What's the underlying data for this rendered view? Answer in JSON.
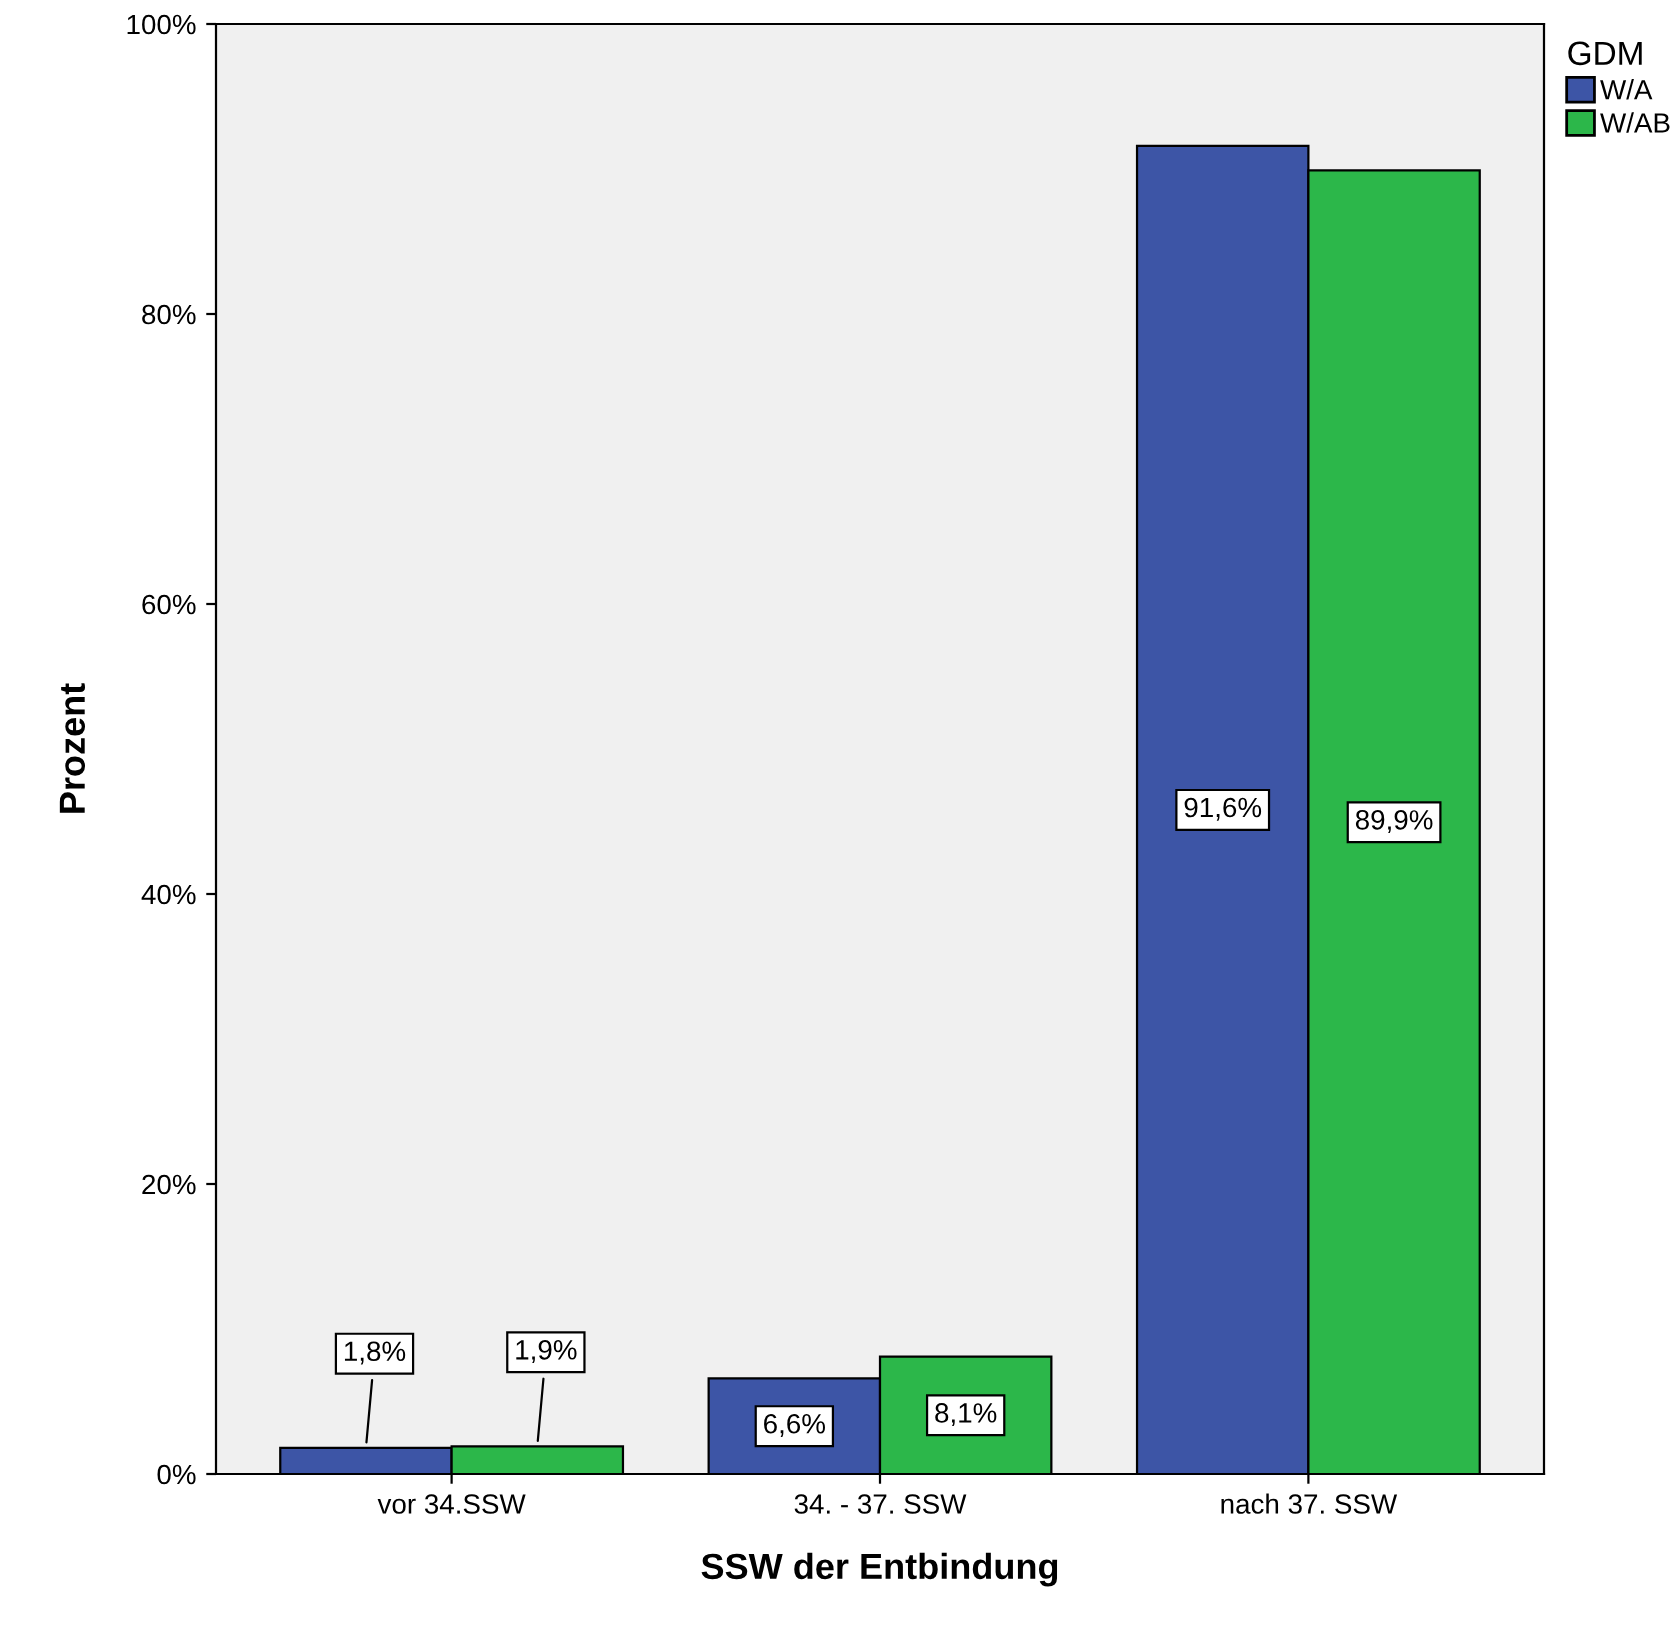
{
  "chart_data": {
    "type": "bar",
    "xlabel": "SSW der Entbindung",
    "ylabel": "Prozent",
    "legend_title": "GDM",
    "categories": [
      "vor 34.SSW",
      "34. - 37. SSW",
      "nach 37. SSW"
    ],
    "series": [
      {
        "name": "W/A",
        "color": "#3d55a6",
        "values": [
          1.8,
          6.6,
          91.6
        ],
        "value_labels": [
          "1,8%",
          "6,6%",
          "91,6%"
        ]
      },
      {
        "name": "W/AB",
        "color": "#2cb74a",
        "values": [
          1.9,
          8.1,
          89.9
        ],
        "value_labels": [
          "1,9%",
          "8,1%",
          "89,9%"
        ]
      }
    ],
    "ylim": [
      0,
      100
    ],
    "yticks": [
      {
        "value": 0,
        "label": "0%"
      },
      {
        "value": 20,
        "label": "20%"
      },
      {
        "value": 40,
        "label": "40%"
      },
      {
        "value": 60,
        "label": "60%"
      },
      {
        "value": 80,
        "label": "80%"
      },
      {
        "value": 100,
        "label": "100%"
      }
    ],
    "grid": false,
    "legend": "top right"
  }
}
